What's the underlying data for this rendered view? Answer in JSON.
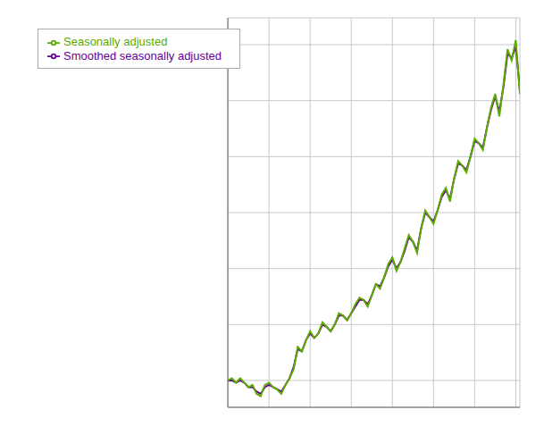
{
  "chart_data": {
    "type": "line",
    "x": [
      0,
      1,
      2,
      3,
      4,
      5,
      6,
      7,
      8,
      9,
      10,
      11,
      12,
      13,
      14,
      15,
      16,
      17,
      18,
      19,
      20,
      21,
      22,
      23,
      24,
      25,
      26,
      27,
      28,
      29,
      30,
      31,
      32,
      33,
      34,
      35,
      36,
      37,
      38,
      39,
      40,
      41,
      42,
      43,
      44,
      45,
      46,
      47,
      48,
      49,
      50,
      51,
      52,
      53,
      54,
      55,
      56,
      57,
      58,
      59,
      60,
      61,
      62,
      63,
      64,
      65,
      66,
      67,
      68,
      69,
      70,
      71
    ],
    "series": [
      {
        "name": "Smoothed seasonally adjusted",
        "color": "#660099",
        "values": [
          100,
          100,
          99,
          100,
          99,
          97,
          97,
          95,
          94,
          97,
          98,
          97,
          96,
          95,
          98,
          101,
          106,
          114,
          113,
          118,
          121,
          119,
          121,
          125,
          124,
          122,
          125,
          129,
          129,
          127,
          130,
          133,
          136,
          136,
          134,
          138,
          143,
          142,
          146,
          151,
          154,
          150,
          153,
          158,
          164,
          162,
          158,
          168,
          175,
          173,
          171,
          176,
          182,
          185,
          181,
          190,
          197,
          196,
          194,
          200,
          207,
          206,
          204,
          213,
          221,
          227,
          220,
          231,
          246,
          244,
          249,
          230
        ]
      },
      {
        "name": "Seasonally adjusted",
        "color": "#5aaa00",
        "values": [
          100,
          101,
          99,
          101,
          99,
          97,
          98,
          94,
          93,
          98,
          99,
          97,
          96,
          94,
          98,
          101,
          105,
          115,
          113,
          118,
          122,
          119,
          121,
          126,
          124,
          122,
          125,
          130,
          129,
          127,
          130,
          134,
          137,
          136,
          133,
          138,
          143,
          141,
          146,
          152,
          155,
          149,
          153,
          159,
          165,
          162,
          157,
          168,
          176,
          173,
          170,
          176,
          183,
          186,
          180,
          190,
          198,
          196,
          193,
          200,
          208,
          206,
          203,
          213,
          222,
          228,
          218,
          232,
          248,
          243,
          252,
          228
        ]
      }
    ],
    "xlim": [
      0,
      71
    ],
    "ylim": [
      88,
      262
    ],
    "xticks": [
      0,
      10,
      20,
      30,
      40,
      50,
      60,
      70
    ],
    "yticks": [
      100,
      125,
      150,
      175,
      200,
      225,
      250
    ],
    "grid": true,
    "legend": "upper left",
    "tick_labels": false
  }
}
